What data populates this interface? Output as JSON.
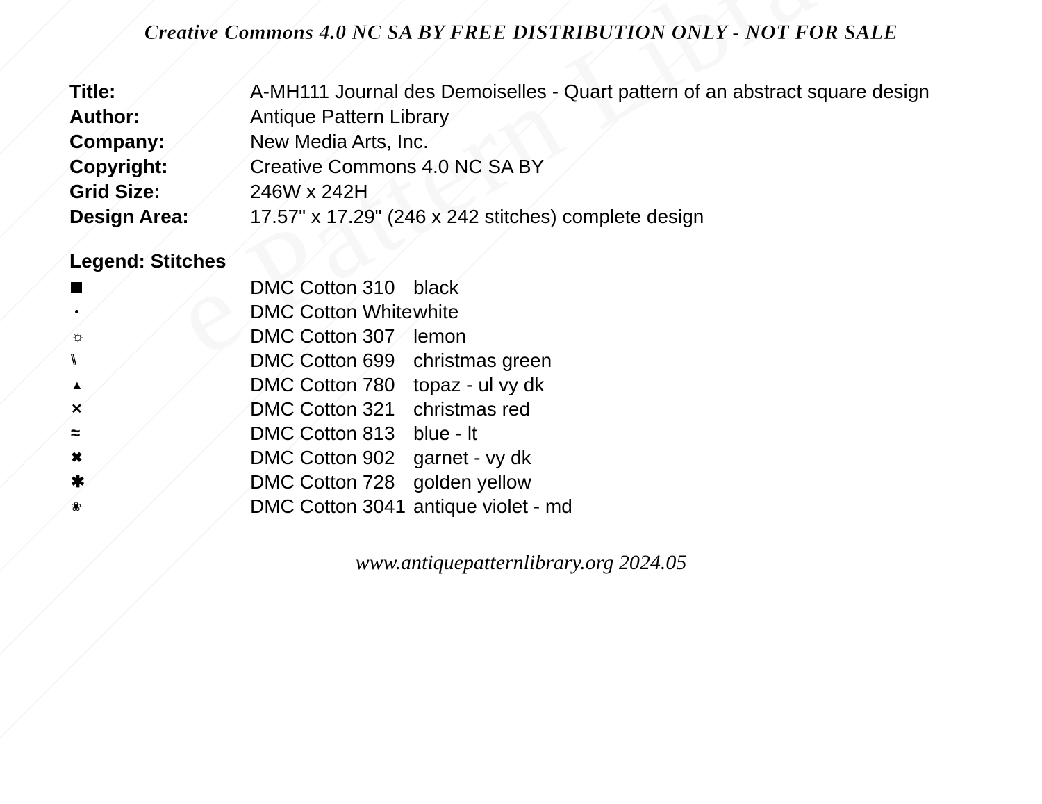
{
  "header": "Creative Commons 4.0 NC SA BY FREE DISTRIBUTION ONLY - NOT FOR SALE",
  "footer": "www.antiquepatternlibrary.org 2024.05",
  "watermark": "e Pattern Libra",
  "metadata": {
    "title_label": "Title:",
    "title_value": "A-MH111 Journal des Demoiselles - Quart pattern of an abstract square design",
    "author_label": "Author:",
    "author_value": "Antique Pattern Library",
    "company_label": "Company:",
    "company_value": "New Media Arts, Inc.",
    "copyright_label": "Copyright:",
    "copyright_value": "Creative Commons 4.0 NC SA BY",
    "gridsize_label": "Grid Size:",
    "gridsize_value": "246W x 242H",
    "designarea_label": "Design Area:",
    "designarea_value": "17.57\" x 17.29\"   (246 x 242 stitches) complete design"
  },
  "legend": {
    "title": "Legend: Stitches",
    "rows": [
      {
        "symbol_type": "square",
        "code": "DMC Cotton 310",
        "color_name": "black"
      },
      {
        "symbol_type": "dot",
        "code": "DMC Cotton White",
        "color_name": "white"
      },
      {
        "symbol_type": "sun",
        "symbol_char": "☼",
        "code": "DMC Cotton 307",
        "color_name": "lemon"
      },
      {
        "symbol_type": "diag",
        "symbol_char": "\\\\",
        "code": "DMC Cotton 699",
        "color_name": "christmas green"
      },
      {
        "symbol_type": "triangle",
        "symbol_char": "▲",
        "code": "DMC Cotton 780",
        "color_name": "topaz - ul vy dk"
      },
      {
        "symbol_type": "xbar",
        "symbol_char": "✕",
        "code": "DMC Cotton 321",
        "color_name": "christmas red"
      },
      {
        "symbol_type": "approx",
        "symbol_char": "≈",
        "code": "DMC Cotton 813",
        "color_name": "blue - lt"
      },
      {
        "symbol_type": "cross",
        "symbol_char": "✖",
        "code": "DMC Cotton 902",
        "color_name": "garnet - vy dk"
      },
      {
        "symbol_type": "asterisk",
        "symbol_char": "✱",
        "code": "DMC Cotton 728",
        "color_name": "golden yellow"
      },
      {
        "symbol_type": "flower",
        "symbol_char": "❀",
        "code": "DMC Cotton 3041",
        "color_name": "antique violet - md"
      }
    ]
  },
  "styling": {
    "background_color": "#ffffff",
    "text_color": "#000000",
    "watermark_line_color": "#f5f5f5",
    "watermark_text_color": "#f7f7f7",
    "body_font": "Arial, Helvetica, sans-serif",
    "header_footer_font": "Georgia, Times New Roman, serif",
    "metadata_fontsize": 28,
    "header_fontsize": 30,
    "footer_fontsize": 30,
    "line_height": 36
  }
}
